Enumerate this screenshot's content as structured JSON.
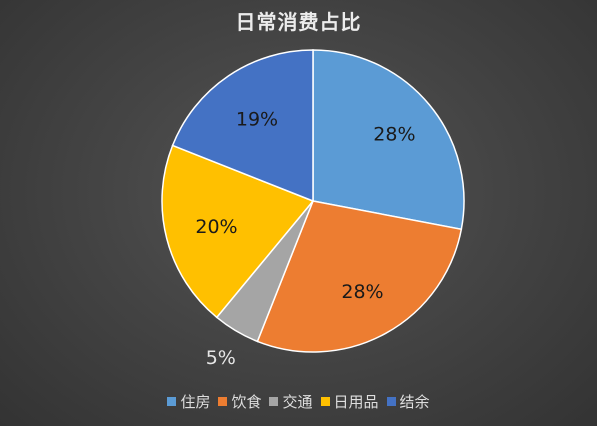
{
  "chart_data": {
    "type": "pie",
    "title": "日常消费占比",
    "categories": [
      "住房",
      "饮食",
      "交通",
      "日用品",
      "结余"
    ],
    "values": [
      28,
      28,
      5,
      20,
      19
    ],
    "labels": [
      "28%",
      "28%",
      "5%",
      "20%",
      "19%"
    ],
    "colors": [
      "#5B9BD5",
      "#ED7D31",
      "#A5A5A5",
      "#FFC000",
      "#4472C4"
    ],
    "legend": "bottom",
    "start": "12 o'clock",
    "direction": "clockwise"
  }
}
